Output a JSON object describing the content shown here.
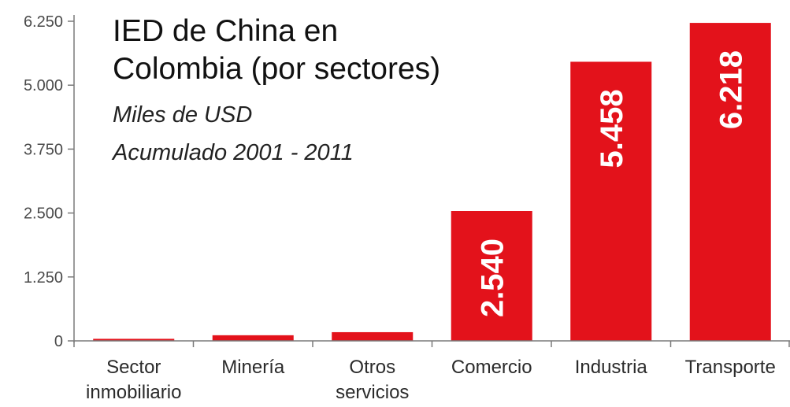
{
  "chart_data": {
    "type": "bar",
    "title_lines": [
      "IED de China en",
      "Colombia (por sectores)"
    ],
    "subtitle_lines": [
      "Miles de USD",
      "Acumulado 2001 - 2011"
    ],
    "categories": [
      [
        "Sector",
        "inmobiliario"
      ],
      [
        "Minería"
      ],
      [
        "Otros",
        "servicios"
      ],
      [
        "Comercio"
      ],
      [
        "Industria"
      ],
      [
        "Transporte"
      ]
    ],
    "values": [
      40,
      110,
      170,
      2540,
      5458,
      6218
    ],
    "data_labels": [
      "",
      "",
      "",
      "2.540",
      "5.458",
      "6.218"
    ],
    "yticks": [
      0,
      1250,
      2500,
      3750,
      5000,
      6250
    ],
    "ytick_labels": [
      "0",
      "1.250",
      "2.500",
      "3.750",
      "5.000",
      "6.250"
    ],
    "ylim": [
      0,
      6250
    ],
    "bar_color": "#e3121b",
    "grid": false,
    "xlabel": "",
    "ylabel": ""
  }
}
